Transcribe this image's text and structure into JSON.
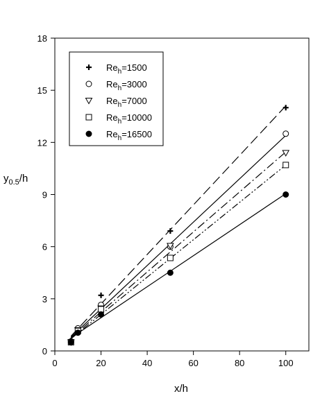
{
  "chart_data": {
    "type": "scatter",
    "xlabel": "x/h",
    "ylabel": {
      "base": "y",
      "sub": "0.5",
      "suffix": "/h"
    },
    "xlim": [
      0,
      110
    ],
    "ylim": [
      0,
      18
    ],
    "x_ticks": [
      0,
      20,
      40,
      60,
      80,
      100
    ],
    "y_ticks": [
      0,
      3,
      6,
      9,
      12,
      15,
      18
    ],
    "grid": false,
    "legend_position": "top-left",
    "series": [
      {
        "name": "1500",
        "label_base": "Re",
        "label_sub": "h",
        "label_suffix": "=1500",
        "marker": "plus",
        "line": "long-dash",
        "x": [
          7,
          10,
          20,
          50,
          100
        ],
        "y": [
          0.6,
          1.2,
          3.2,
          6.9,
          14.0
        ],
        "fit": [
          [
            7,
            0.85
          ],
          [
            100,
            14.1
          ]
        ]
      },
      {
        "name": "3000",
        "label_base": "Re",
        "label_sub": "h",
        "label_suffix": "=3000",
        "marker": "circle-open",
        "line": "solid",
        "x": [
          7,
          10,
          20,
          50,
          100
        ],
        "y": [
          0.55,
          1.3,
          2.65,
          6.0,
          12.5
        ],
        "fit": [
          [
            7,
            0.8
          ],
          [
            100,
            12.4
          ]
        ]
      },
      {
        "name": "7000",
        "label_base": "Re",
        "label_sub": "h",
        "label_suffix": "=7000",
        "marker": "triangle-down-open",
        "line": "dash-dot",
        "x": [
          7,
          10,
          20,
          50,
          100
        ],
        "y": [
          0.5,
          1.2,
          2.45,
          6.05,
          11.4
        ],
        "fit": [
          [
            7,
            0.75
          ],
          [
            100,
            11.45
          ]
        ]
      },
      {
        "name": "10000",
        "label_base": "Re",
        "label_sub": "h",
        "label_suffix": "=10000",
        "marker": "square-open",
        "line": "dash-dot-dot",
        "x": [
          7,
          10,
          20,
          50,
          100
        ],
        "y": [
          0.5,
          1.15,
          2.4,
          5.35,
          10.7
        ],
        "fit": [
          [
            7,
            0.7
          ],
          [
            100,
            10.7
          ]
        ]
      },
      {
        "name": "16500",
        "label_base": "Re",
        "label_sub": "h",
        "label_suffix": "=16500",
        "marker": "circle-filled",
        "line": "solid",
        "x": [
          7,
          10,
          20,
          50,
          100
        ],
        "y": [
          0.5,
          1.05,
          2.1,
          4.5,
          9.0
        ],
        "fit": [
          [
            7,
            0.75
          ],
          [
            100,
            9.05
          ]
        ]
      }
    ]
  }
}
